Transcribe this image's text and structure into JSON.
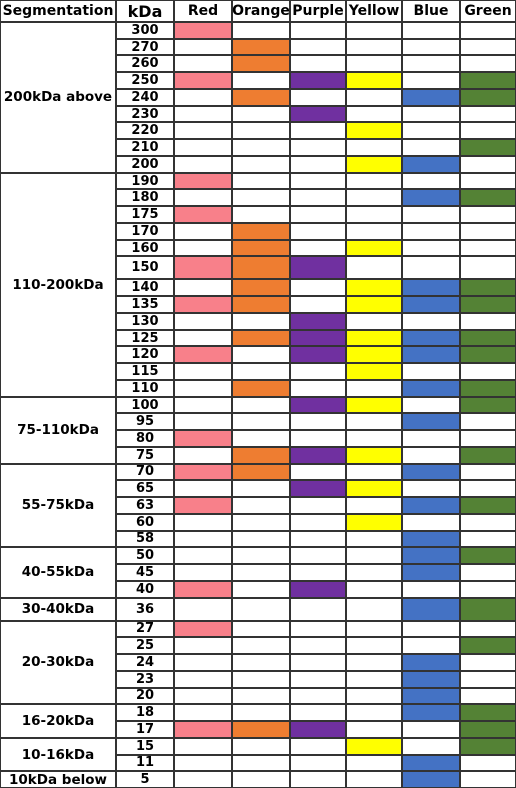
{
  "headers": {
    "segmentation": "Segmentation",
    "kda": "kDa",
    "colors": [
      "Red",
      "Orange",
      "Purple",
      "Yellow",
      "Blue",
      "Green"
    ]
  },
  "color_hex": {
    "Red": "#f8808a",
    "Orange": "#ee7d31",
    "Purple": "#7030a0",
    "Yellow": "#ffff00",
    "Blue": "#4472c4",
    "Green": "#548235"
  },
  "segments": [
    {
      "label": "200kDa above",
      "rows": [
        {
          "kda": "300",
          "marks": [
            "Red"
          ]
        },
        {
          "kda": "270",
          "marks": [
            "Orange"
          ]
        },
        {
          "kda": "260",
          "marks": [
            "Orange"
          ]
        },
        {
          "kda": "250",
          "marks": [
            "Red",
            "Purple",
            "Yellow",
            "Green"
          ]
        },
        {
          "kda": "240",
          "marks": [
            "Orange",
            "Blue",
            "Green"
          ]
        },
        {
          "kda": "230",
          "marks": [
            "Purple"
          ]
        },
        {
          "kda": "220",
          "marks": [
            "Yellow"
          ]
        },
        {
          "kda": "210",
          "marks": [
            "Green"
          ]
        },
        {
          "kda": "200",
          "marks": [
            "Yellow",
            "Blue"
          ]
        }
      ]
    },
    {
      "label": "110-200kDa",
      "rows": [
        {
          "kda": "190",
          "marks": [
            "Red"
          ]
        },
        {
          "kda": "180",
          "marks": [
            "Blue",
            "Green"
          ]
        },
        {
          "kda": "175",
          "marks": [
            "Red"
          ]
        },
        {
          "kda": "170",
          "marks": [
            "Orange"
          ]
        },
        {
          "kda": "160",
          "marks": [
            "Orange",
            "Yellow"
          ]
        },
        {
          "kda": "150",
          "marks": [
            "Red",
            "Orange",
            "Purple"
          ],
          "tall": true
        },
        {
          "kda": "140",
          "marks": [
            "Orange",
            "Yellow",
            "Blue",
            "Green"
          ]
        },
        {
          "kda": "135",
          "marks": [
            "Red",
            "Orange",
            "Yellow",
            "Blue",
            "Green"
          ]
        },
        {
          "kda": "130",
          "marks": [
            "Purple"
          ]
        },
        {
          "kda": "125",
          "marks": [
            "Orange",
            "Purple",
            "Yellow",
            "Blue",
            "Green"
          ]
        },
        {
          "kda": "120",
          "marks": [
            "Red",
            "Purple",
            "Yellow",
            "Blue",
            "Green"
          ]
        },
        {
          "kda": "115",
          "marks": [
            "Yellow"
          ]
        },
        {
          "kda": "110",
          "marks": [
            "Orange",
            "Blue",
            "Green"
          ]
        }
      ]
    },
    {
      "label": "75-110kDa",
      "rows": [
        {
          "kda": "100",
          "marks": [
            "Purple",
            "Yellow",
            "Green"
          ]
        },
        {
          "kda": "95",
          "marks": [
            "Blue"
          ]
        },
        {
          "kda": "80",
          "marks": [
            "Red"
          ]
        },
        {
          "kda": "75",
          "marks": [
            "Orange",
            "Purple",
            "Yellow",
            "Green"
          ]
        }
      ]
    },
    {
      "label": "55-75kDa",
      "rows": [
        {
          "kda": "70",
          "marks": [
            "Red",
            "Orange",
            "Blue"
          ]
        },
        {
          "kda": "65",
          "marks": [
            "Purple",
            "Yellow"
          ]
        },
        {
          "kda": "63",
          "marks": [
            "Red",
            "Blue",
            "Green"
          ]
        },
        {
          "kda": "60",
          "marks": [
            "Yellow"
          ]
        },
        {
          "kda": "58",
          "marks": [
            "Blue"
          ]
        }
      ]
    },
    {
      "label": "40-55kDa",
      "rows": [
        {
          "kda": "50",
          "marks": [
            "Blue",
            "Green"
          ]
        },
        {
          "kda": "45",
          "marks": [
            "Blue"
          ]
        },
        {
          "kda": "40",
          "marks": [
            "Red",
            "Purple"
          ]
        }
      ]
    },
    {
      "label": "30-40kDa",
      "rows": [
        {
          "kda": "36",
          "marks": [
            "Blue",
            "Green"
          ],
          "tall": true
        }
      ]
    },
    {
      "label": "20-30kDa",
      "rows": [
        {
          "kda": "27",
          "marks": [
            "Red"
          ]
        },
        {
          "kda": "25",
          "marks": [
            "Green"
          ]
        },
        {
          "kda": "24",
          "marks": [
            "Blue"
          ]
        },
        {
          "kda": "23",
          "marks": [
            "Blue"
          ]
        },
        {
          "kda": "20",
          "marks": [
            "Blue"
          ]
        }
      ]
    },
    {
      "label": "16-20kDa",
      "rows": [
        {
          "kda": "18",
          "marks": [
            "Blue",
            "Green"
          ]
        },
        {
          "kda": "17",
          "marks": [
            "Red",
            "Orange",
            "Purple",
            "Green"
          ]
        }
      ]
    },
    {
      "label": "10-16kDa",
      "rows": [
        {
          "kda": "15",
          "marks": [
            "Yellow",
            "Green"
          ]
        },
        {
          "kda": "11",
          "marks": [
            "Blue"
          ]
        }
      ]
    },
    {
      "label": "10kDa below",
      "rows": [
        {
          "kda": "5",
          "marks": [
            "Blue"
          ]
        }
      ]
    }
  ]
}
